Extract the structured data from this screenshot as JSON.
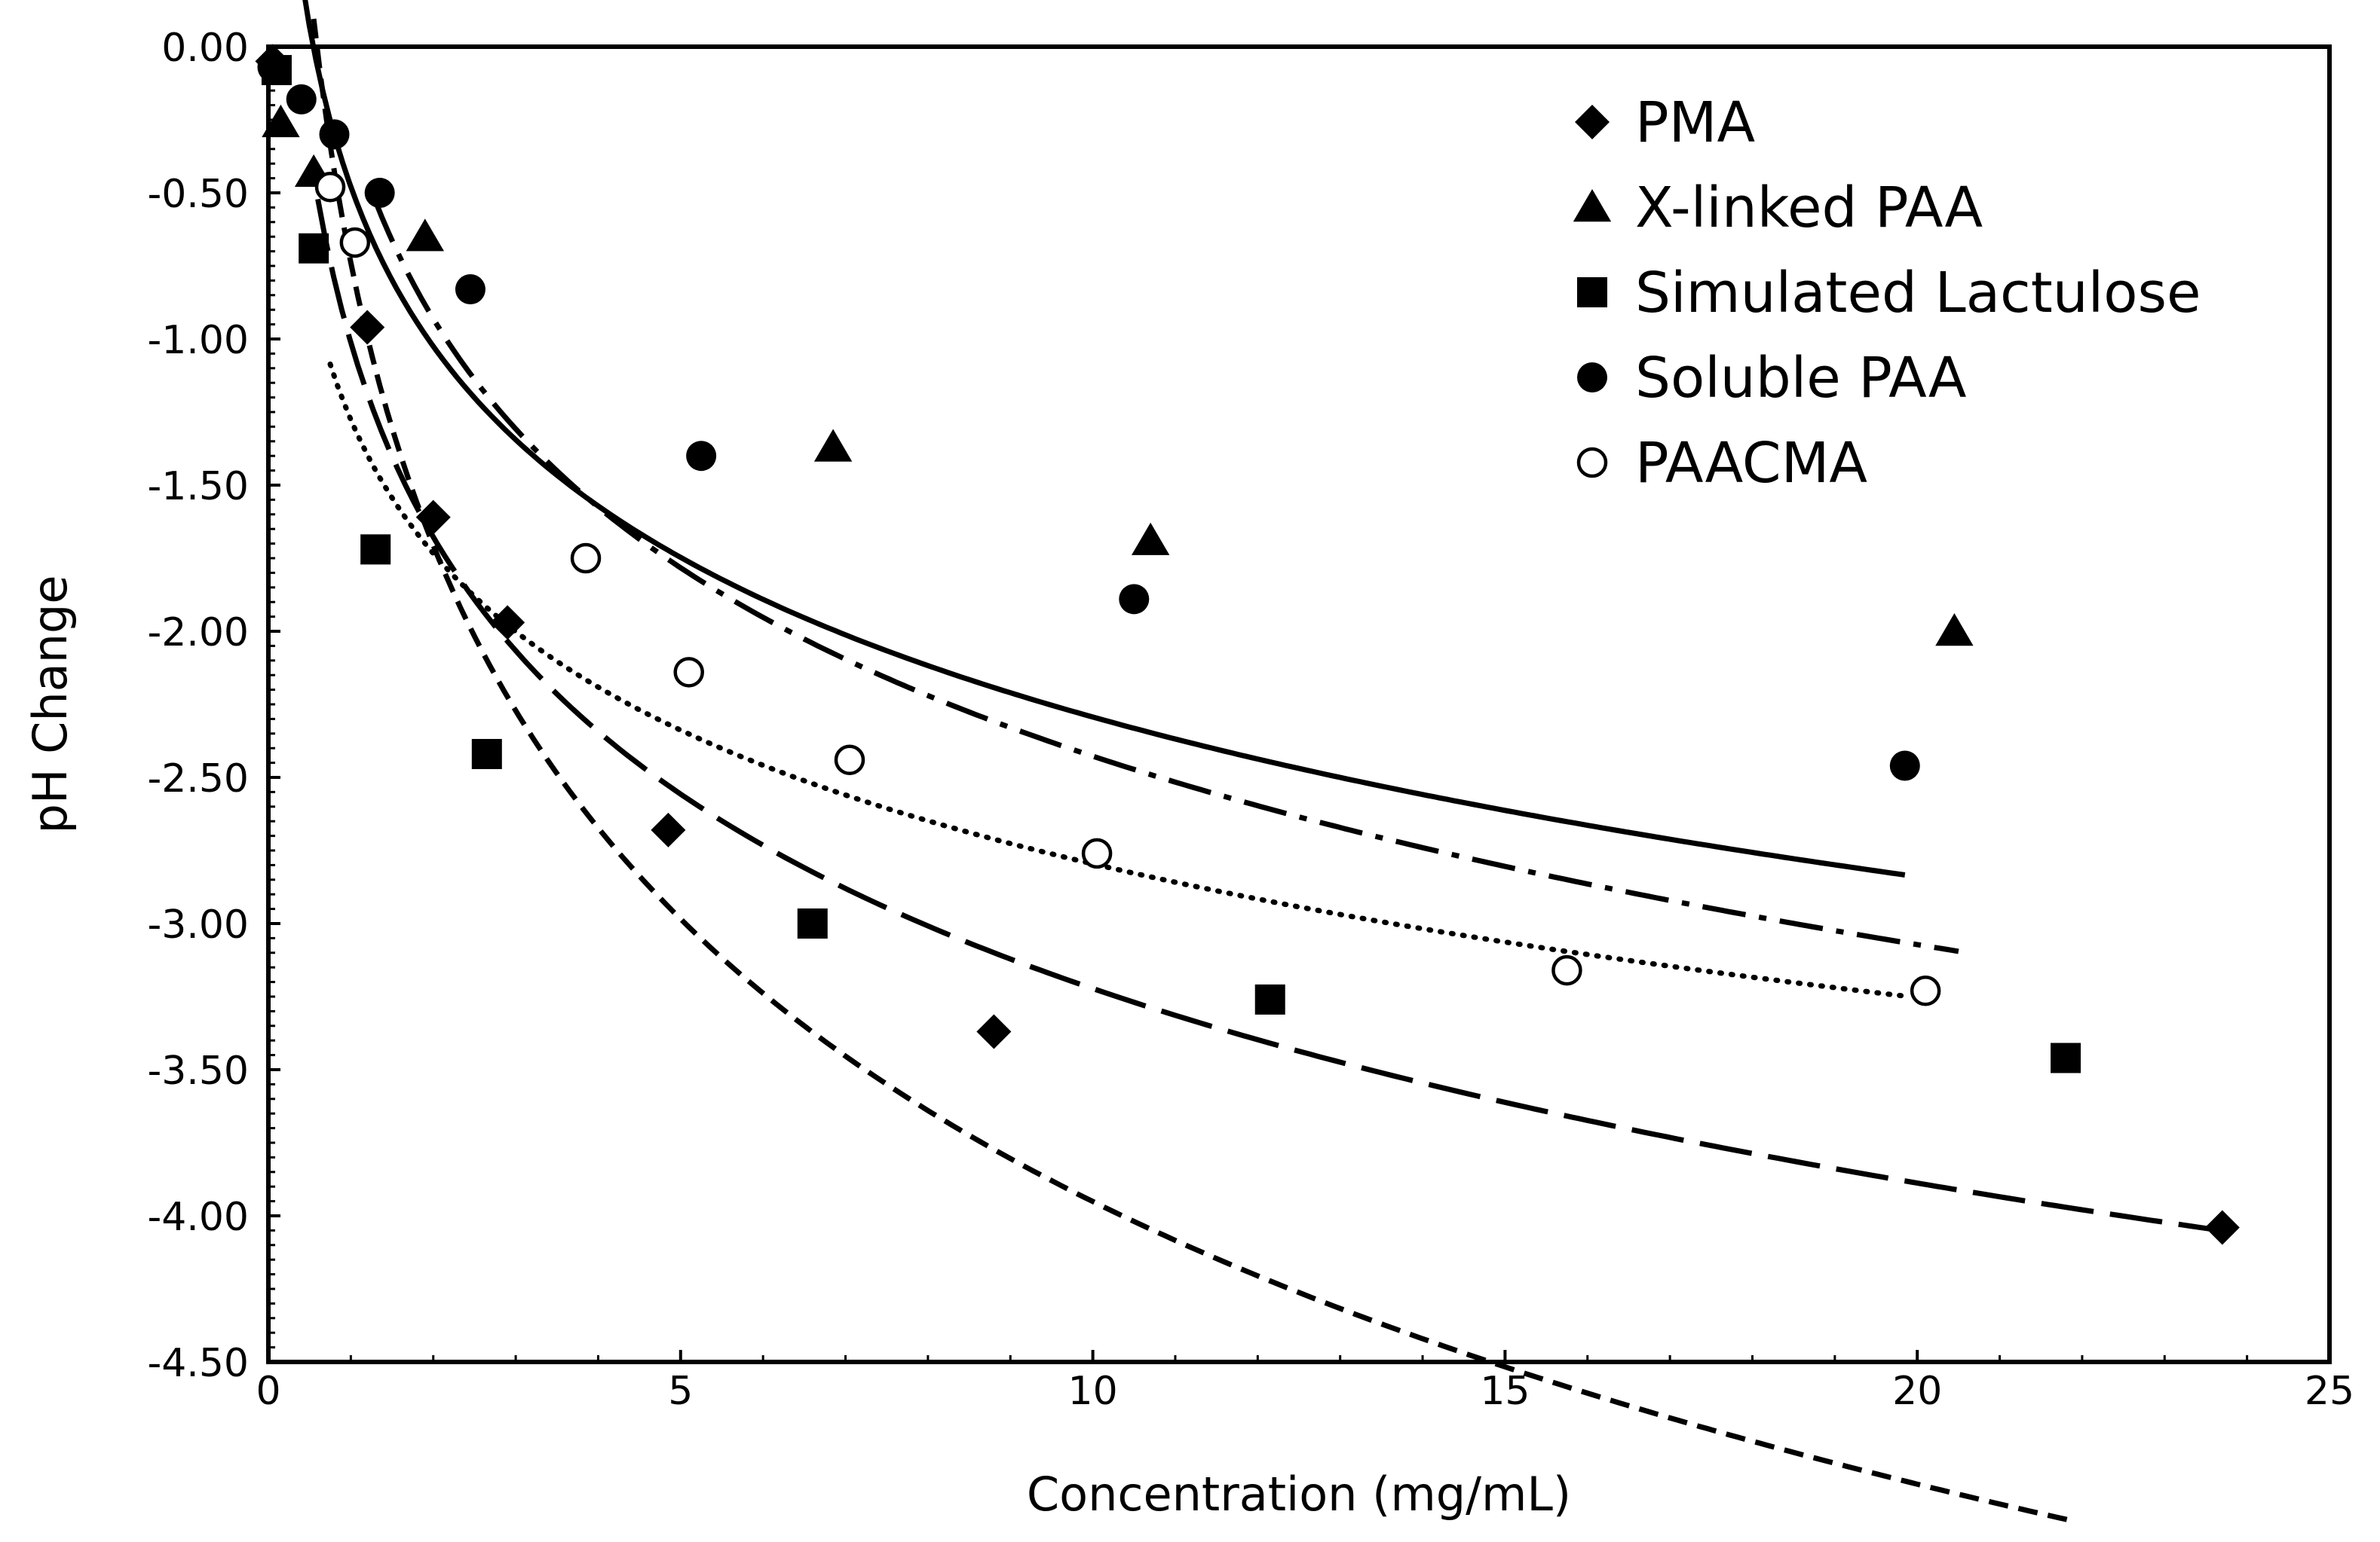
{
  "chart_data": {
    "type": "scatter",
    "title": "",
    "xlabel": "Concentration (mg/mL)",
    "ylabel": "pH Change",
    "xlim": [
      0,
      25
    ],
    "ylim": [
      -4.5,
      0
    ],
    "x_ticks": [
      0,
      5,
      10,
      15,
      20,
      25
    ],
    "x_tick_labels": [
      "0",
      "5",
      "10",
      "15",
      "20",
      "25"
    ],
    "y_ticks": [
      0,
      -0.5,
      -1,
      -1.5,
      -2,
      -2.5,
      -3,
      -3.5,
      -4,
      -4.5
    ],
    "y_tick_labels": [
      "0.00",
      "-0.50",
      "-1.00",
      "-1.50",
      "-2.00",
      "-2.50",
      "-3.00",
      "-3.50",
      "-4.00",
      "-4.50"
    ],
    "grid": false,
    "legend_position": "top-right",
    "series": [
      {
        "name": "PMA",
        "marker": "diamond",
        "fit_style": "long-dash",
        "x": [
          0.05,
          1.2,
          2.0,
          2.9,
          4.85,
          8.8,
          23.7
        ],
        "y": [
          -0.05,
          -0.96,
          -1.61,
          -1.97,
          -2.68,
          -3.37,
          -4.04
        ],
        "fit": {
          "a": -0.96,
          "b": 1.012,
          "x_start": 0.6,
          "x_end": 23.7
        }
      },
      {
        "name": "X-linked PAA",
        "marker": "triangle",
        "fit_style": "dash-dot",
        "x": [
          0.15,
          0.55,
          1.9,
          6.85,
          10.7,
          20.45
        ],
        "y": [
          -0.26,
          -0.43,
          -0.65,
          -1.37,
          -1.69,
          -2.0
        ],
        "fit": {
          "a": -0.93,
          "b": 0.286,
          "x_start": 1.3,
          "x_end": 20.5
        }
      },
      {
        "name": "Simulated Lactulose",
        "marker": "square",
        "fit_style": "short-dash",
        "x": [
          0.1,
          0.55,
          1.3,
          2.65,
          6.6,
          12.15,
          21.8
        ],
        "y": [
          -0.08,
          -0.69,
          -1.72,
          -2.42,
          -3.0,
          -3.26,
          -3.46
        ],
        "fit": {
          "a": -1.395,
          "b": 0.739,
          "x_start": 0.55,
          "x_end": 21.9
        }
      },
      {
        "name": "Soluble PAA",
        "marker": "circle-filled",
        "fit_style": "solid",
        "x": [
          0.05,
          0.4,
          0.8,
          1.35,
          2.45,
          5.25,
          10.5,
          19.85
        ],
        "y": [
          -0.07,
          -0.18,
          -0.3,
          -0.5,
          -0.83,
          -1.4,
          -1.89,
          -2.46
        ],
        "fit": {
          "a": -0.788,
          "b": 0.479,
          "x_start": 0.25,
          "x_end": 19.85
        }
      },
      {
        "name": "PAACMA",
        "marker": "circle-open",
        "fit_style": "dotted",
        "x": [
          0.75,
          1.05,
          3.85,
          5.1,
          7.05,
          10.05,
          15.75,
          20.1
        ],
        "y": [
          -0.48,
          -0.67,
          -1.75,
          -2.14,
          -2.44,
          -2.76,
          -3.16,
          -3.23
        ],
        "fit": {
          "a": -0.66,
          "b": 1.276,
          "x_start": 0.75,
          "x_end": 19.9
        }
      }
    ]
  }
}
